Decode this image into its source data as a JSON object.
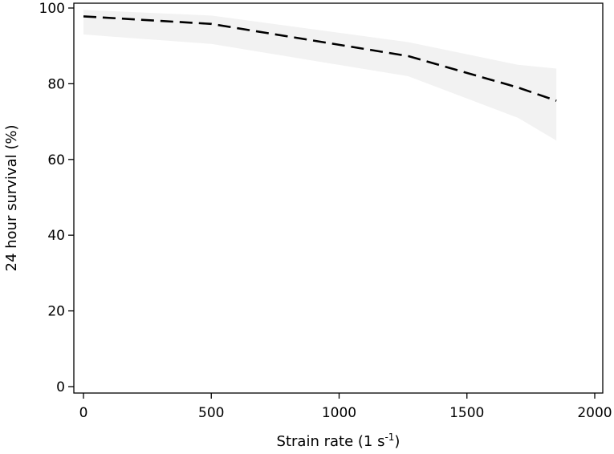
{
  "chart_data": {
    "type": "line",
    "title": "",
    "xlabel": "Strain rate (1 s",
    "xlabel_superscript": "-1",
    "xlabel_suffix": ")",
    "ylabel": "24 hour survival (%)",
    "xlim": [
      0,
      2000
    ],
    "ylim": [
      0,
      100
    ],
    "xticks": [
      0,
      500,
      1000,
      1500,
      2000
    ],
    "xtick_labels": [
      "0",
      "500",
      "1000",
      "1500",
      "2000"
    ],
    "yticks": [
      0,
      20,
      40,
      60,
      80,
      100
    ],
    "ytick_labels": [
      "0",
      "20",
      "40",
      "60",
      "80",
      "100"
    ],
    "grid": false,
    "series": [
      {
        "line_style": "dashed",
        "color": "#000000",
        "band_color": "#f2f2f2",
        "points": [
          {
            "x": 0,
            "y": 97.8,
            "lower": 93.0,
            "upper": 99.5
          },
          {
            "x": 500,
            "y": 95.8,
            "lower": 90.5,
            "upper": 98.0
          },
          {
            "x": 1270,
            "y": 87.3,
            "lower": 82.0,
            "upper": 91.0
          },
          {
            "x": 1700,
            "y": 79.0,
            "lower": 71.0,
            "upper": 85.0
          },
          {
            "x": 1850,
            "y": 75.5,
            "lower": 65.0,
            "upper": 84.0
          }
        ]
      }
    ]
  }
}
